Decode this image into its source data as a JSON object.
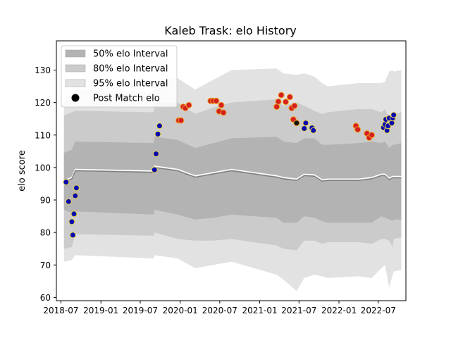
{
  "chart_data": {
    "type": "line",
    "title": "Kaleb Trask: elo History",
    "xlabel": "",
    "ylabel": "elo score",
    "xlim": [
      "2018-06-10",
      "2022-11-05"
    ],
    "ylim": [
      59,
      139
    ],
    "yticks": [
      60,
      70,
      80,
      90,
      100,
      110,
      120,
      130
    ],
    "xticks": [
      "2018-07",
      "2019-01",
      "2019-07",
      "2020-01",
      "2020-07",
      "2021-01",
      "2021-07",
      "2022-01",
      "2022-07"
    ],
    "grid": false,
    "legend_position": "upper-left",
    "legend": [
      {
        "label": "50% elo Interval",
        "kind": "band",
        "color": "#b3b3b3"
      },
      {
        "label": "80% elo Interval",
        "kind": "band",
        "color": "#cbcbcb"
      },
      {
        "label": "95% elo Interval",
        "kind": "band",
        "color": "#e2e2e2"
      },
      {
        "label": "Post Match elo",
        "kind": "marker",
        "color": "#000000"
      }
    ],
    "colors": {
      "band50": "#b3b3b3",
      "band80": "#cbcbcb",
      "band95": "#e2e2e2",
      "mean_line": "#7f7f7f",
      "highlight_line": "#ffffff",
      "marker_blue_fill": "#0a0ab0",
      "marker_blue_edge": "#e8d84a",
      "marker_red_fill": "#d42020",
      "marker_red_edge": "#f0a020",
      "marker_black_fill": "#111111"
    },
    "series": [
      {
        "kind": "bands",
        "x": [
          "2018-07-15",
          "2018-08-20",
          "2018-09-05",
          "2019-09-01",
          "2019-09-05",
          "2019-12-20",
          "2020-03-10",
          "2020-06-01",
          "2020-08-25",
          "2021-03-20",
          "2021-04-20",
          "2021-06-20",
          "2021-07-25",
          "2021-09-10",
          "2021-10-15",
          "2021-11-10",
          "2022-04-01",
          "2022-06-01",
          "2022-07-15",
          "2022-08-01",
          "2022-08-20",
          "2022-09-05",
          "2022-09-10",
          "2022-10-15"
        ],
        "mean": [
          95.5,
          96.5,
          99,
          98.5,
          100,
          99,
          97,
          98,
          99,
          97,
          96.5,
          96,
          97.5,
          97.3,
          95.8,
          96,
          96,
          96.5,
          97.5,
          97.5,
          96.3,
          96.8,
          96.8,
          96.8
        ],
        "p50_low": [
          87,
          86,
          86.5,
          85.5,
          87,
          85.5,
          84,
          84.5,
          85.5,
          84.5,
          83,
          83,
          85,
          84.5,
          83.5,
          83,
          83,
          83,
          85,
          84.5,
          84,
          83.5,
          84,
          84
        ],
        "p50_high": [
          104.5,
          105.5,
          108,
          107.5,
          109.5,
          108.5,
          106,
          107.5,
          109,
          109.5,
          108,
          107.5,
          109,
          109,
          107,
          107,
          107.5,
          108,
          107.5,
          108,
          106,
          107,
          107,
          107.5
        ],
        "p80_low": [
          75,
          75.5,
          79.5,
          79,
          80,
          78,
          77.5,
          77.5,
          78,
          76,
          75,
          74.5,
          77.5,
          77.5,
          76.5,
          77,
          77,
          76.5,
          78,
          78,
          77.5,
          75.5,
          78,
          78.5
        ],
        "p80_high": [
          116,
          117,
          117.5,
          117,
          120,
          120,
          116.5,
          118.5,
          120,
          121,
          119,
          120,
          119,
          117.5,
          116.5,
          117,
          118,
          118,
          117,
          118,
          115.5,
          116.5,
          116.5,
          117
        ],
        "p95_low": [
          71,
          71.5,
          73,
          72,
          73,
          72,
          69,
          70,
          71,
          67,
          65.5,
          62,
          66,
          67,
          66.5,
          66,
          66.5,
          66,
          69,
          70,
          63,
          67,
          68,
          68.5
        ],
        "p95_high": [
          120,
          123,
          124,
          123,
          127,
          127.5,
          124,
          127,
          130,
          130.5,
          129,
          128.5,
          129,
          128,
          126,
          125,
          126,
          126,
          126,
          126.5,
          129.5,
          130,
          129.5,
          130
        ]
      },
      {
        "name": "Post Match elo",
        "kind": "points",
        "points": [
          {
            "x": "2018-07-25",
            "y": 95.5,
            "c": "blue"
          },
          {
            "x": "2018-08-05",
            "y": 89.5,
            "c": "blue"
          },
          {
            "x": "2018-08-20",
            "y": 83.3,
            "c": "blue"
          },
          {
            "x": "2018-08-25",
            "y": 79.2,
            "c": "blue"
          },
          {
            "x": "2018-08-30",
            "y": 85.7,
            "c": "blue"
          },
          {
            "x": "2018-09-05",
            "y": 91.3,
            "c": "blue"
          },
          {
            "x": "2018-09-10",
            "y": 93.7,
            "c": "blue"
          },
          {
            "x": "2019-09-05",
            "y": 99.3,
            "c": "blue"
          },
          {
            "x": "2019-09-12",
            "y": 104.2,
            "c": "blue"
          },
          {
            "x": "2019-09-20",
            "y": 110.3,
            "c": "blue"
          },
          {
            "x": "2019-09-28",
            "y": 112.8,
            "c": "blue"
          },
          {
            "x": "2019-12-25",
            "y": 114.5,
            "c": "red"
          },
          {
            "x": "2020-01-05",
            "y": 114.5,
            "c": "red"
          },
          {
            "x": "2020-01-15",
            "y": 118.7,
            "c": "red"
          },
          {
            "x": "2020-01-25",
            "y": 118.3,
            "c": "red"
          },
          {
            "x": "2020-02-10",
            "y": 119.2,
            "c": "red"
          },
          {
            "x": "2020-05-20",
            "y": 120.5,
            "c": "red"
          },
          {
            "x": "2020-06-01",
            "y": 120.5,
            "c": "red"
          },
          {
            "x": "2020-06-15",
            "y": 120.5,
            "c": "red"
          },
          {
            "x": "2020-06-28",
            "y": 117.3,
            "c": "red"
          },
          {
            "x": "2020-07-08",
            "y": 119.2,
            "c": "red"
          },
          {
            "x": "2020-07-18",
            "y": 116.9,
            "c": "red"
          },
          {
            "x": "2021-03-20",
            "y": 118.7,
            "c": "red"
          },
          {
            "x": "2021-03-28",
            "y": 120.3,
            "c": "red"
          },
          {
            "x": "2021-04-10",
            "y": 122.3,
            "c": "red"
          },
          {
            "x": "2021-05-01",
            "y": 120.2,
            "c": "red"
          },
          {
            "x": "2021-05-20",
            "y": 121.7,
            "c": "red"
          },
          {
            "x": "2021-05-28",
            "y": 118.3,
            "c": "red"
          },
          {
            "x": "2021-06-05",
            "y": 114.8,
            "c": "red"
          },
          {
            "x": "2021-06-10",
            "y": 119,
            "c": "red"
          },
          {
            "x": "2021-06-20",
            "y": 113.7,
            "c": "black"
          },
          {
            "x": "2021-07-25",
            "y": 112,
            "c": "blue"
          },
          {
            "x": "2021-08-01",
            "y": 113.7,
            "c": "blue"
          },
          {
            "x": "2021-08-30",
            "y": 112.2,
            "c": "blue"
          },
          {
            "x": "2021-09-05",
            "y": 111.4,
            "c": "blue"
          },
          {
            "x": "2022-03-20",
            "y": 112.8,
            "c": "red"
          },
          {
            "x": "2022-03-28",
            "y": 111.7,
            "c": "red"
          },
          {
            "x": "2022-05-10",
            "y": 110.5,
            "c": "red"
          },
          {
            "x": "2022-05-20",
            "y": 109.2,
            "c": "red"
          },
          {
            "x": "2022-06-01",
            "y": 110,
            "c": "red"
          },
          {
            "x": "2022-07-25",
            "y": 112.3,
            "c": "blue"
          },
          {
            "x": "2022-08-01",
            "y": 113.3,
            "c": "blue"
          },
          {
            "x": "2022-08-05",
            "y": 114.8,
            "c": "blue"
          },
          {
            "x": "2022-08-10",
            "y": 111.4,
            "c": "blue"
          },
          {
            "x": "2022-08-15",
            "y": 112.8,
            "c": "blue"
          },
          {
            "x": "2022-08-20",
            "y": 115.2,
            "c": "blue"
          },
          {
            "x": "2022-09-01",
            "y": 113.7,
            "c": "blue"
          },
          {
            "x": "2022-09-05",
            "y": 115.2,
            "c": "blue"
          },
          {
            "x": "2022-09-10",
            "y": 116.2,
            "c": "blue"
          }
        ]
      }
    ]
  }
}
